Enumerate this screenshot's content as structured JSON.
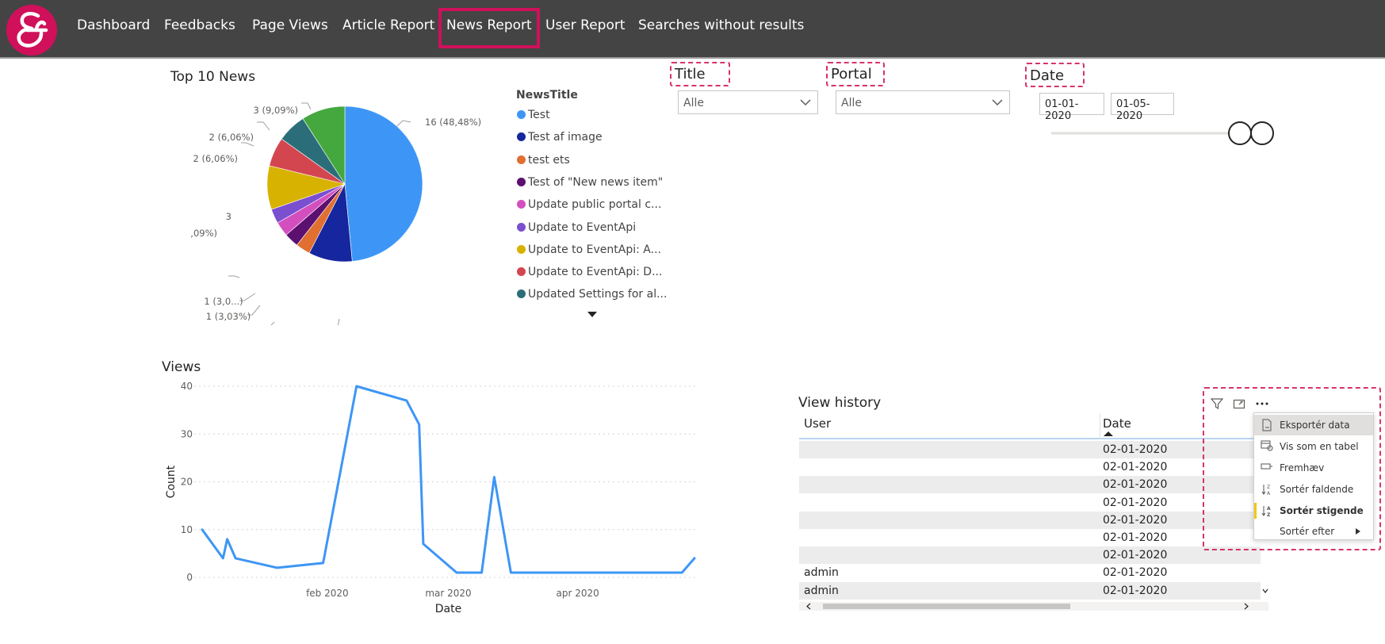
{
  "nav": {
    "items": [
      "Dashboard",
      "Feedbacks",
      "Page Views",
      "Article Report",
      "News Report",
      "User Report",
      "Searches without results"
    ]
  },
  "pie": {
    "title": "Top 10 News",
    "legend_title": "NewsTitle",
    "legend": [
      {
        "label": "Test",
        "color": "#3d96f5"
      },
      {
        "label": "Test af image",
        "color": "#16269e"
      },
      {
        "label": "test ets",
        "color": "#e06f31"
      },
      {
        "label": "Test of \"New news item\"",
        "color": "#5c1070"
      },
      {
        "label": "Update public portal c...",
        "color": "#d44fbe"
      },
      {
        "label": "Update to EventApi",
        "color": "#7a4fd0"
      },
      {
        "label": "Update to EventApi: A...",
        "color": "#d8b200"
      },
      {
        "label": "Update to EventApi: D...",
        "color": "#d34650"
      },
      {
        "label": "Updated Settings for al...",
        "color": "#2b6e7a"
      }
    ],
    "slice_labels": [
      "16 (48,48%)",
      "3 (9,09%)",
      "1 (3,03%)",
      "1 (3,03%)",
      "1 (3,0...)",
      "3",
      "(9,09%)",
      "2 (6,06%)",
      "2 (6,06%)",
      "3 (9,09%)"
    ]
  },
  "chart_data": [
    {
      "type": "pie",
      "title": "Top 10 News",
      "legend_title": "NewsTitle",
      "slices": [
        {
          "label": "Test",
          "value": 16,
          "color": "#3d96f5"
        },
        {
          "label": "Test af image",
          "value": 3,
          "color": "#16269e"
        },
        {
          "label": "test ets",
          "value": 1,
          "color": "#e06f31"
        },
        {
          "label": "Test of \"New news item\"",
          "value": 1,
          "color": "#5c1070"
        },
        {
          "label": "Update public portal c...",
          "value": 1,
          "color": "#d44fbe"
        },
        {
          "label": "Update to EventApi",
          "value": 1,
          "color": "#7a4fd0"
        },
        {
          "label": "Update to EventApi: A...",
          "value": 3,
          "color": "#d8b200"
        },
        {
          "label": "Update to EventApi: D...",
          "value": 2,
          "color": "#d34650"
        },
        {
          "label": "Updated Settings for al...",
          "value": 2,
          "color": "#2b6e7a"
        },
        {
          "label": "",
          "value": 3,
          "color": "#45a83f"
        }
      ]
    },
    {
      "type": "line",
      "title": "Views",
      "xlabel": "Date",
      "ylabel": "Count",
      "ylim": [
        0,
        40
      ],
      "yticks": [
        0,
        10,
        20,
        30,
        40
      ],
      "xticks": [
        "feb 2020",
        "mar 2020",
        "apr 2020"
      ],
      "xticks_dates": [
        "2020-02-01",
        "2020-03-01",
        "2020-04-01"
      ],
      "xlim": [
        "2020-01-02",
        "2020-04-29"
      ],
      "color": "#3d96f5",
      "x": [
        "2020-01-02",
        "2020-01-07",
        "2020-01-08",
        "2020-01-10",
        "2020-01-20",
        "2020-01-31",
        "2020-02-08",
        "2020-02-20",
        "2020-02-23",
        "2020-02-24",
        "2020-03-03",
        "2020-03-09",
        "2020-03-12",
        "2020-03-16",
        "2020-04-26",
        "2020-04-29"
      ],
      "y": [
        10,
        4,
        8,
        4,
        2,
        3,
        40,
        37,
        32,
        7,
        1,
        1,
        21,
        1,
        1,
        4
      ]
    }
  ],
  "line": {
    "title": "Views",
    "xlabel": "Date",
    "ylabel": "Count",
    "yticks": [
      "0",
      "10",
      "20",
      "30",
      "40"
    ],
    "xticks": [
      "feb 2020",
      "mar 2020",
      "apr 2020"
    ]
  },
  "slicers": {
    "title_label": "Title",
    "title_value": "Alle",
    "portal_label": "Portal",
    "portal_value": "Alle",
    "date_label": "Date",
    "date_from": "01-01-2020",
    "date_to": "01-05-2020"
  },
  "history": {
    "title": "View history",
    "col_user": "User",
    "col_date": "Date",
    "rows": [
      {
        "user": "",
        "date": "02-01-2020"
      },
      {
        "user": "",
        "date": "02-01-2020"
      },
      {
        "user": "",
        "date": "02-01-2020"
      },
      {
        "user": "",
        "date": "02-01-2020"
      },
      {
        "user": "",
        "date": "02-01-2020"
      },
      {
        "user": "",
        "date": "02-01-2020"
      },
      {
        "user": "",
        "date": "02-01-2020"
      },
      {
        "user": "admin",
        "date": "02-01-2020"
      },
      {
        "user": "admin",
        "date": "02-01-2020"
      }
    ]
  },
  "menu": {
    "items": [
      "Eksportér data",
      "Vis som en tabel",
      "Fremhæv",
      "Sortér faldende",
      "Sortér stigende",
      "Sortér efter"
    ]
  },
  "colors": {
    "accent": "#d0105a",
    "dash": "#d6336c",
    "line": "#3d96f5"
  }
}
